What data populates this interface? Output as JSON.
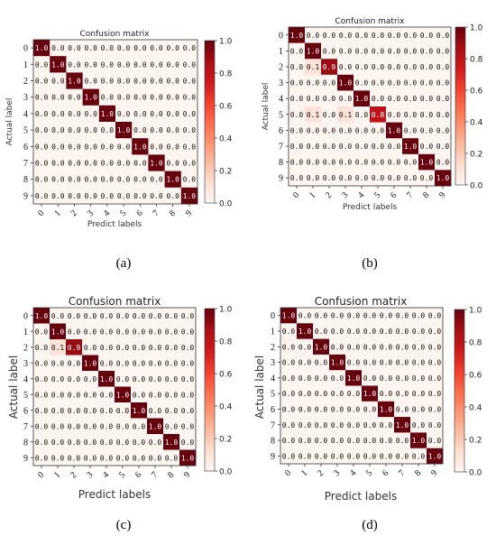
{
  "chart_data": [
    {
      "type": "heatmap",
      "panel_label": "(a)",
      "title": "Confusion matrix",
      "xlabel": "Predict labels",
      "ylabel": "Actual label",
      "x_ticks": [
        "0",
        "1",
        "2",
        "3",
        "4",
        "5",
        "6",
        "7",
        "8",
        "9"
      ],
      "y_ticks": [
        "0",
        "1",
        "2",
        "3",
        "4",
        "5",
        "6",
        "7",
        "8",
        "9"
      ],
      "matrix": [
        [
          1,
          0,
          0,
          0,
          0,
          0,
          0,
          0,
          0,
          0
        ],
        [
          0,
          1,
          0,
          0,
          0,
          0,
          0,
          0,
          0,
          0
        ],
        [
          0,
          0,
          1,
          0,
          0,
          0,
          0,
          0,
          0,
          0
        ],
        [
          0,
          0,
          0,
          1,
          0,
          0,
          0,
          0,
          0,
          0
        ],
        [
          0,
          0,
          0,
          0,
          1,
          0,
          0,
          0,
          0,
          0
        ],
        [
          0,
          0,
          0,
          0,
          0,
          1,
          0,
          0,
          0,
          0
        ],
        [
          0,
          0,
          0,
          0,
          0,
          0,
          1,
          0,
          0,
          0
        ],
        [
          0,
          0,
          0,
          0,
          0,
          0,
          0,
          1,
          0,
          0
        ],
        [
          0,
          0,
          0,
          0,
          0,
          0,
          0,
          0,
          1,
          0
        ],
        [
          0,
          0,
          0,
          0,
          0,
          0,
          0,
          0,
          0,
          1
        ]
      ],
      "diag_labels": [
        "1.0",
        "1.0",
        "1.0",
        "1.0",
        "1.0",
        "1.0",
        "1.0",
        "1.0",
        "1.0",
        "1.0"
      ],
      "offdiag_label": "0.0",
      "colorbar_ticks": [
        "1.0",
        "0.8",
        "0.6",
        "0.4",
        "0.2",
        "0.0"
      ],
      "colorbar_range": [
        0,
        1
      ],
      "colormap": {
        "low": "#fff5f0",
        "high": "#67000d"
      }
    },
    {
      "type": "heatmap",
      "panel_label": "(b)",
      "title": "Confusion matrix",
      "xlabel": "Predict labels",
      "ylabel": "Actual label",
      "x_ticks": [
        "0",
        "1",
        "2",
        "3",
        "4",
        "5",
        "6",
        "7",
        "8",
        "9"
      ],
      "y_ticks": [
        "0",
        "1",
        "2",
        "3",
        "4",
        "5",
        "6",
        "7",
        "8",
        "9"
      ],
      "matrix": [
        [
          1,
          0,
          0,
          0,
          0,
          0,
          0,
          0,
          0,
          0
        ],
        [
          0,
          1,
          0,
          0,
          0,
          0,
          0,
          0,
          0,
          0
        ],
        [
          0,
          0.1,
          0.9,
          0,
          0,
          0,
          0,
          0,
          0,
          0
        ],
        [
          0,
          0,
          0,
          1,
          0,
          0,
          0,
          0,
          0,
          0
        ],
        [
          0,
          0,
          0,
          0,
          1,
          0,
          0,
          0,
          0,
          0
        ],
        [
          0,
          0.1,
          0,
          0.1,
          0,
          0.8,
          0,
          0,
          0,
          0
        ],
        [
          0,
          0,
          0,
          0,
          0,
          0,
          1,
          0,
          0,
          0
        ],
        [
          0,
          0,
          0,
          0,
          0,
          0,
          0,
          1,
          0,
          0
        ],
        [
          0,
          0,
          0,
          0,
          0,
          0,
          0,
          0,
          1,
          0
        ],
        [
          0,
          0,
          0,
          0,
          0,
          0,
          0,
          0,
          0,
          1
        ]
      ],
      "diag_labels": [
        "1.0",
        "1.0",
        "0.9",
        "1.0",
        "1.0",
        "0.8",
        "1.0",
        "1.0",
        "1.0",
        "1.0"
      ],
      "offdiag_label": "0.0",
      "colorbar_ticks": [
        "1.0",
        "0.8",
        "0.6",
        "0.4",
        "0.2",
        "0.0"
      ],
      "colorbar_range": [
        0,
        1
      ],
      "colormap": {
        "low": "#fff5f0",
        "high": "#67000d"
      }
    },
    {
      "type": "heatmap",
      "panel_label": "(c)",
      "title": "Confusion matrix",
      "xlabel": "Predict labels",
      "ylabel": "Actual label",
      "x_ticks": [
        "0",
        "1",
        "2",
        "3",
        "4",
        "5",
        "6",
        "7",
        "8",
        "9"
      ],
      "y_ticks": [
        "0",
        "1",
        "2",
        "3",
        "4",
        "5",
        "6",
        "7",
        "8",
        "9"
      ],
      "matrix": [
        [
          1,
          0,
          0,
          0,
          0,
          0,
          0,
          0,
          0,
          0
        ],
        [
          0,
          1,
          0,
          0,
          0,
          0,
          0,
          0,
          0,
          0
        ],
        [
          0,
          0.1,
          0.9,
          0,
          0,
          0,
          0,
          0,
          0,
          0
        ],
        [
          0,
          0,
          0,
          1,
          0,
          0,
          0,
          0,
          0,
          0
        ],
        [
          0,
          0,
          0,
          0,
          1,
          0,
          0,
          0,
          0,
          0
        ],
        [
          0,
          0,
          0,
          0,
          0,
          1,
          0,
          0,
          0,
          0
        ],
        [
          0,
          0,
          0,
          0,
          0,
          0,
          1,
          0,
          0,
          0
        ],
        [
          0,
          0,
          0,
          0,
          0,
          0,
          0,
          1,
          0,
          0
        ],
        [
          0,
          0,
          0,
          0,
          0,
          0,
          0,
          0,
          1,
          0
        ],
        [
          0,
          0,
          0,
          0,
          0,
          0,
          0,
          0,
          0,
          1
        ]
      ],
      "diag_labels": [
        "1.0",
        "1.0",
        "0.9",
        "1.0",
        "1.0",
        "1.0",
        "1.0",
        "1.0",
        "1.0",
        "1.0"
      ],
      "offdiag_label": "0.0",
      "colorbar_ticks": [
        "1.0",
        "0.8",
        "0.6",
        "0.4",
        "0.2",
        "0.0"
      ],
      "colorbar_range": [
        0,
        1
      ],
      "colormap": {
        "low": "#fff5f0",
        "high": "#67000d"
      }
    },
    {
      "type": "heatmap",
      "panel_label": "(d)",
      "title": "Confusion matrix",
      "xlabel": "Predict labels",
      "ylabel": "Actual label",
      "x_ticks": [
        "0",
        "1",
        "2",
        "3",
        "4",
        "5",
        "6",
        "7",
        "8",
        "9"
      ],
      "y_ticks": [
        "0",
        "1",
        "2",
        "3",
        "4",
        "5",
        "6",
        "7",
        "8",
        "9"
      ],
      "matrix": [
        [
          1,
          0,
          0,
          0,
          0,
          0,
          0,
          0,
          0,
          0
        ],
        [
          0,
          1,
          0,
          0,
          0,
          0,
          0,
          0,
          0,
          0
        ],
        [
          0,
          0,
          1,
          0,
          0,
          0,
          0,
          0,
          0,
          0
        ],
        [
          0,
          0,
          0,
          1,
          0,
          0,
          0,
          0,
          0,
          0
        ],
        [
          0,
          0,
          0,
          0,
          1,
          0,
          0,
          0,
          0,
          0
        ],
        [
          0,
          0,
          0,
          0,
          0,
          1,
          0,
          0,
          0,
          0
        ],
        [
          0,
          0,
          0,
          0,
          0,
          0,
          1,
          0,
          0,
          0
        ],
        [
          0,
          0,
          0,
          0,
          0,
          0,
          0,
          1,
          0,
          0
        ],
        [
          0,
          0,
          0,
          0,
          0,
          0,
          0,
          0,
          1,
          0
        ],
        [
          0,
          0,
          0,
          0,
          0,
          0,
          0,
          0,
          0,
          1
        ]
      ],
      "diag_labels": [
        "1.0",
        "1.0",
        "1.0",
        "1.0",
        "1.0",
        "1.0",
        "1.0",
        "1.0",
        "1.0",
        "1.0"
      ],
      "offdiag_label": "0.0",
      "colorbar_ticks": [
        "1.0",
        "0.8",
        "0.6",
        "0.4",
        "0.2",
        "0.0"
      ],
      "colorbar_range": [
        0,
        1
      ],
      "colormap": {
        "low": "#fff5f0",
        "high": "#67000d"
      }
    }
  ]
}
